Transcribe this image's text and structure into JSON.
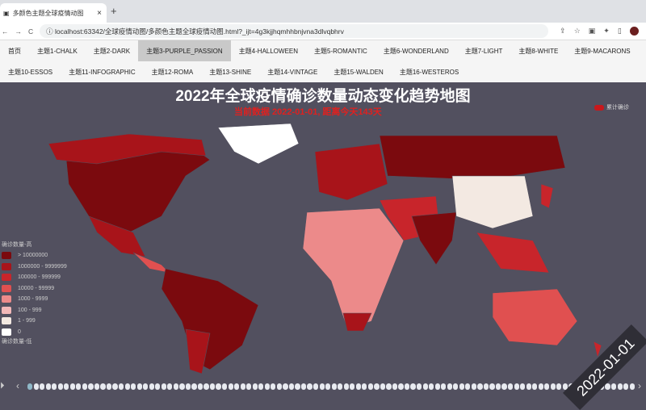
{
  "browser": {
    "tab_title": "多颜色主题全球疫情动图",
    "url": "localhost:63342/全球疫情动图/多颜色主题全球疫情动图.html?_ijt=4g3kjjhqmhhbnjvna3dlvqbhrv"
  },
  "nav": {
    "row1": [
      "首页",
      "主题1-CHALK",
      "主题2-DARK",
      "主题3-PURPLE_PASSION",
      "主题4-HALLOWEEN",
      "主题5-ROMANTIC",
      "主题6-WONDERLAND",
      "主题7-LIGHT",
      "主题8-WHITE",
      "主题9-MACARONS"
    ],
    "row2": [
      "主题10-ESSOS",
      "主题11-INFOGRAPHIC",
      "主题12-ROMA",
      "主题13-SHINE",
      "主题14-VINTAGE",
      "主题15-WALDEN",
      "主题16-WESTEROS"
    ],
    "active": "主题3-PURPLE_PASSION"
  },
  "chart": {
    "title": "2022年全球疫情确诊数量动态变化趋势地图",
    "subtitle": "当前数据 2022-01-01, 距离今天143天",
    "series_legend": "累计确诊",
    "series_color": "#c8181c",
    "legend_top": "确诊数量-高",
    "legend_bottom": "确诊数量-低",
    "pieces": [
      {
        "label": "> 10000000",
        "color": "#7b0a0e"
      },
      {
        "label": "1000000 - 9999999",
        "color": "#a8141a"
      },
      {
        "label": "100000 - 999999",
        "color": "#c8252b"
      },
      {
        "label": "10000 - 99999",
        "color": "#e05050"
      },
      {
        "label": "1000 - 9999",
        "color": "#ec8a8a"
      },
      {
        "label": "100 - 999",
        "color": "#f2b8b8"
      },
      {
        "label": "1 - 999",
        "color": "#f3e9e2"
      },
      {
        "label": "0",
        "color": "#ffffff"
      }
    ],
    "current_date": "2022-01-01",
    "timeline_count": 100,
    "timeline_position": 0
  }
}
